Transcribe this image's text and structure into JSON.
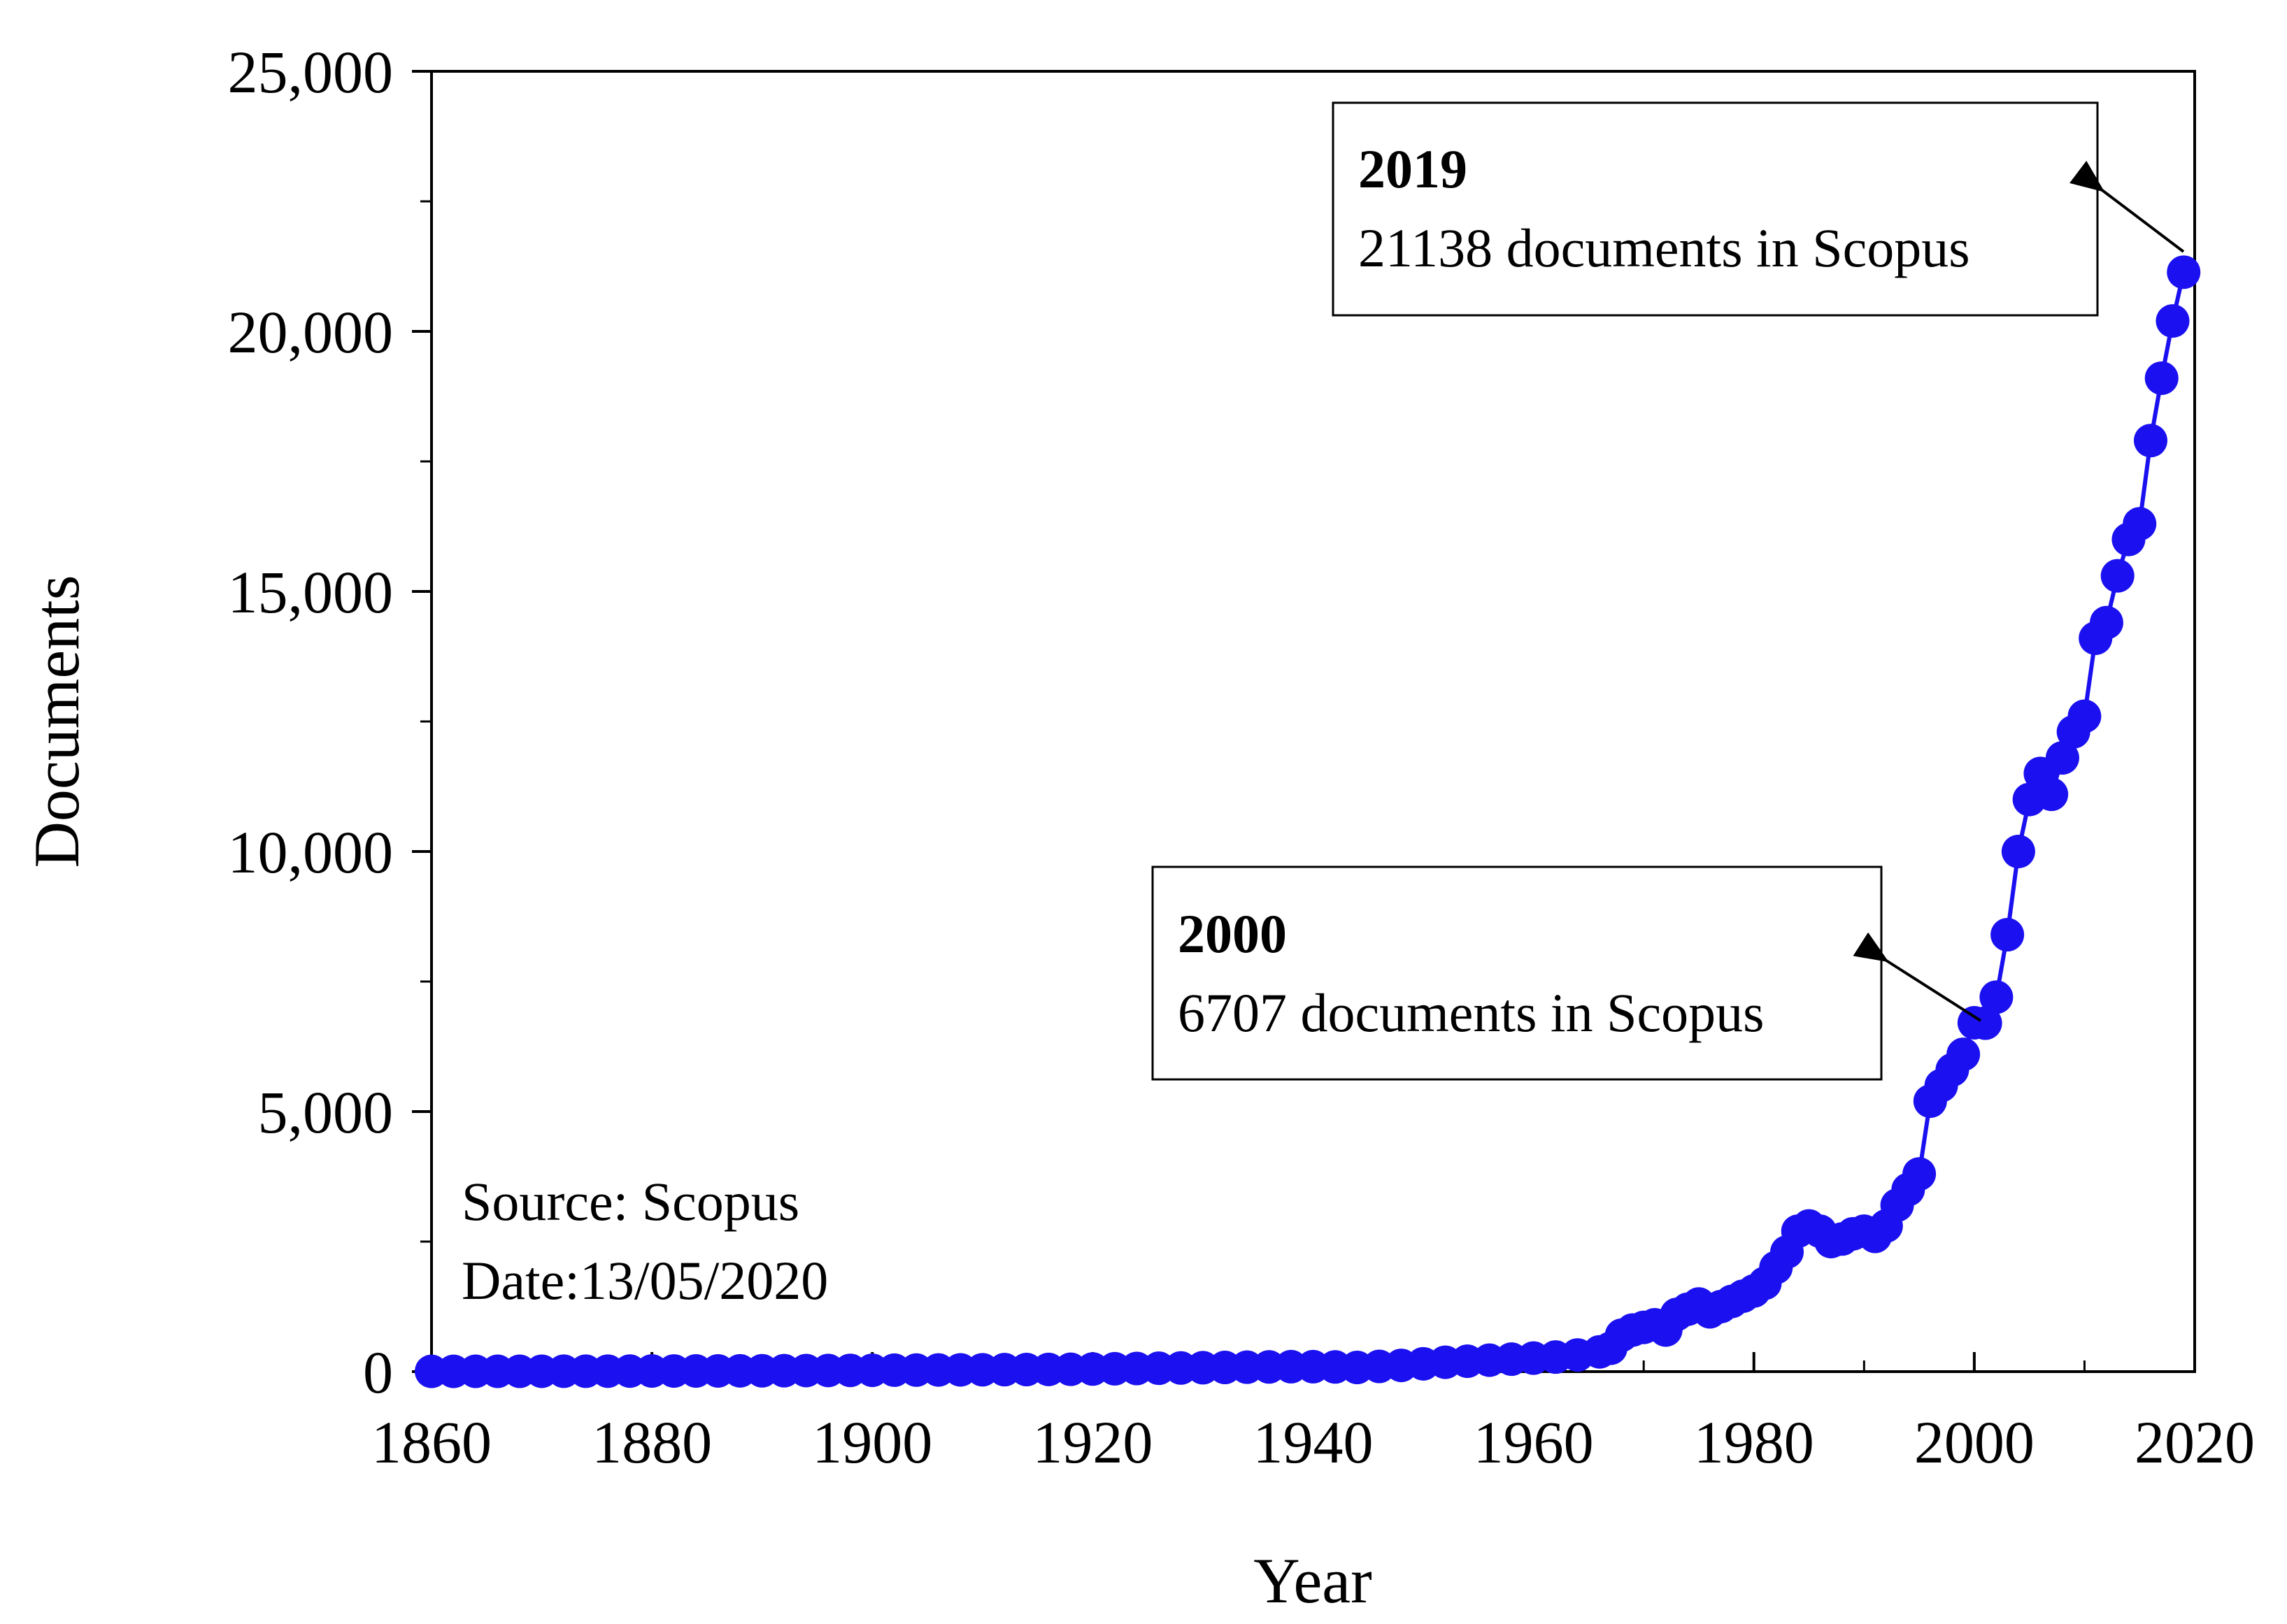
{
  "chart_data": {
    "type": "scatter",
    "xlabel": "Year",
    "ylabel": "Documents",
    "xlim": [
      1860,
      2020
    ],
    "ylim": [
      0,
      25000
    ],
    "x_ticks": [
      1860,
      1880,
      1900,
      1920,
      1940,
      1960,
      1980,
      2000,
      2020
    ],
    "y_ticks": [
      0,
      5000,
      10000,
      15000,
      20000,
      25000
    ],
    "x_tick_labels": [
      "1860",
      "1880",
      "1900",
      "1920",
      "1940",
      "1960",
      "1980",
      "2000",
      "2020"
    ],
    "y_tick_labels": [
      "0",
      "5,000",
      "10,000",
      "15,000",
      "20,000",
      "25,000"
    ],
    "grid": false,
    "series": [
      {
        "color": "#1a10f0",
        "marker": "circle",
        "connected": true,
        "x": [
          1860,
          1862,
          1864,
          1866,
          1868,
          1870,
          1872,
          1874,
          1876,
          1878,
          1880,
          1882,
          1884,
          1886,
          1888,
          1890,
          1892,
          1894,
          1896,
          1898,
          1900,
          1902,
          1904,
          1906,
          1908,
          1910,
          1912,
          1914,
          1916,
          1918,
          1920,
          1922,
          1924,
          1926,
          1928,
          1930,
          1932,
          1934,
          1936,
          1938,
          1940,
          1942,
          1944,
          1946,
          1948,
          1950,
          1952,
          1954,
          1956,
          1958,
          1960,
          1962,
          1964,
          1966,
          1967,
          1968,
          1969,
          1970,
          1971,
          1972,
          1973,
          1974,
          1975,
          1976,
          1977,
          1978,
          1979,
          1980,
          1981,
          1982,
          1983,
          1984,
          1985,
          1986,
          1987,
          1988,
          1989,
          1990,
          1991,
          1992,
          1993,
          1994,
          1995,
          1996,
          1997,
          1998,
          1999,
          2000,
          2001,
          2002,
          2003,
          2004,
          2005,
          2006,
          2007,
          2008,
          2009,
          2010,
          2011,
          2012,
          2013,
          2014,
          2015,
          2016,
          2017,
          2018,
          2019
        ],
        "y": [
          5,
          5,
          6,
          6,
          6,
          7,
          8,
          8,
          9,
          10,
          12,
          12,
          13,
          14,
          15,
          16,
          18,
          20,
          22,
          24,
          26,
          28,
          30,
          32,
          34,
          36,
          38,
          40,
          42,
          45,
          50,
          55,
          60,
          65,
          70,
          75,
          80,
          85,
          90,
          95,
          95,
          90,
          80,
          100,
          120,
          150,
          180,
          200,
          220,
          240,
          260,
          280,
          320,
          380,
          450,
          700,
          800,
          850,
          900,
          800,
          1100,
          1200,
          1300,
          1150,
          1250,
          1350,
          1450,
          1550,
          1700,
          2000,
          2300,
          2700,
          2800,
          2700,
          2500,
          2550,
          2650,
          2700,
          2600,
          2800,
          3200,
          3500,
          3800,
          5200,
          5500,
          5800,
          6100,
          6707,
          6700,
          7200,
          8400,
          10000,
          11000,
          11500,
          11100,
          11800,
          12300,
          12600,
          14100,
          14400,
          15300,
          16000,
          16300,
          17900,
          19100,
          20200,
          21138
        ]
      }
    ],
    "annotations": [
      {
        "year": "2019",
        "text": "21138 documents in Scopus",
        "point": [
          2019,
          21138
        ]
      },
      {
        "year": "2000",
        "text": "6707 documents in Scopus",
        "point": [
          2000,
          6707
        ]
      }
    ],
    "notes": [
      "Source: Scopus",
      "Date:13/05/2020"
    ]
  }
}
